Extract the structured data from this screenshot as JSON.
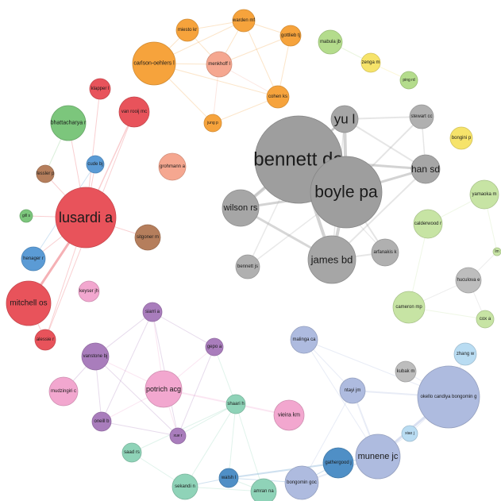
{
  "nodes": [
    {
      "id": "bennett",
      "label": "bennett da",
      "color": "#9e9e9e"
    },
    {
      "id": "boyle",
      "label": "boyle pa",
      "color": "#9e9e9e"
    },
    {
      "id": "yu",
      "label": "yu l",
      "color": "#a6a6a6"
    },
    {
      "id": "hansd",
      "label": "han sd",
      "color": "#a6a6a6"
    },
    {
      "id": "wilson",
      "label": "wilson rs",
      "color": "#a6a6a6"
    },
    {
      "id": "james",
      "label": "james bd",
      "color": "#a6a6a6"
    },
    {
      "id": "stewart",
      "label": "stewart cc",
      "color": "#b0b0b0"
    },
    {
      "id": "bennettjs",
      "label": "bennett js",
      "color": "#b0b0b0"
    },
    {
      "id": "arfanakis",
      "label": "arfanakis k",
      "color": "#b0b0b0"
    },
    {
      "id": "huculova",
      "label": "huculova e",
      "color": "#bdbdbd"
    },
    {
      "id": "kubak",
      "label": "kubak m",
      "color": "#bdbdbd"
    },
    {
      "id": "lusardi",
      "label": "lusardi a",
      "color": "#e8535b"
    },
    {
      "id": "mitchell",
      "label": "mitchell os",
      "color": "#e8535b"
    },
    {
      "id": "vanrooij",
      "label": "van rooij mc",
      "color": "#e8535b"
    },
    {
      "id": "klapper",
      "label": "klapper l",
      "color": "#e8535b"
    },
    {
      "id": "alessie",
      "label": "alessie r",
      "color": "#e8535b"
    },
    {
      "id": "bhattacharya",
      "label": "bhattacharya r",
      "color": "#7cc67c"
    },
    {
      "id": "gill",
      "label": "gill s",
      "color": "#7cc67c"
    },
    {
      "id": "fessler",
      "label": "fessler p",
      "color": "#b57e5c"
    },
    {
      "id": "sitgoner",
      "label": "sitgoner m",
      "color": "#b57e5c"
    },
    {
      "id": "cude",
      "label": "cude bj",
      "color": "#5b9bd5"
    },
    {
      "id": "henager",
      "label": "henager r",
      "color": "#5b9bd5"
    },
    {
      "id": "carlson",
      "label": "carlson-oehlers l",
      "color": "#f6a33c"
    },
    {
      "id": "miesto",
      "label": "miesto kr",
      "color": "#f6a33c"
    },
    {
      "id": "warden",
      "label": "warden mf",
      "color": "#f6a33c"
    },
    {
      "id": "gottlieb",
      "label": "gottlieb tj",
      "color": "#f6a33c"
    },
    {
      "id": "menkhoff",
      "label": "menkhoff l",
      "color": "#f5a790"
    },
    {
      "id": "cohen",
      "label": "cohen ks",
      "color": "#f6a33c"
    },
    {
      "id": "jung",
      "label": "jung p",
      "color": "#f6a33c"
    },
    {
      "id": "grohmann",
      "label": "grohmann a",
      "color": "#f5a790"
    },
    {
      "id": "mabula",
      "label": "mabula jb",
      "color": "#b4dc8c"
    },
    {
      "id": "zenga",
      "label": "zenga m",
      "color": "#f6e36a"
    },
    {
      "id": "ping",
      "label": "ping rd",
      "color": "#b4dc8c"
    },
    {
      "id": "bongini",
      "label": "bongini p",
      "color": "#f6e36a"
    },
    {
      "id": "yamaoka",
      "label": "yamaoka m",
      "color": "#c7e4a4"
    },
    {
      "id": "calderwood",
      "label": "calderwood r",
      "color": "#c7e4a4"
    },
    {
      "id": "lm",
      "label": "lm",
      "color": "#c7e4a4"
    },
    {
      "id": "cameron",
      "label": "cameron mp",
      "color": "#c7e4a4"
    },
    {
      "id": "cox",
      "label": "cox a",
      "color": "#c7e4a4"
    },
    {
      "id": "keyser",
      "label": "keyser jh",
      "color": "#f2a7cf"
    },
    {
      "id": "mudzingiri",
      "label": "mudzingiri c",
      "color": "#f2a7cf"
    },
    {
      "id": "potrich",
      "label": "potrich acg",
      "color": "#f2a7cf"
    },
    {
      "id": "vieira",
      "label": "vieira km",
      "color": "#f2a7cf"
    },
    {
      "id": "siarri",
      "label": "siarri a",
      "color": "#a97dbc"
    },
    {
      "id": "vanstone",
      "label": "vanstone bj",
      "color": "#a97dbc"
    },
    {
      "id": "gepo",
      "label": "gepo a",
      "color": "#a97dbc"
    },
    {
      "id": "oneill",
      "label": "oneill b",
      "color": "#a97dbc"
    },
    {
      "id": "xue",
      "label": "xue r",
      "color": "#a97dbc"
    },
    {
      "id": "shaari",
      "label": "shaari h",
      "color": "#8fd3b8"
    },
    {
      "id": "saad",
      "label": "saad rs",
      "color": "#8fd3b8"
    },
    {
      "id": "sekandi",
      "label": "sekandi n",
      "color": "#8fd3b8"
    },
    {
      "id": "amran",
      "label": "amran na",
      "color": "#8fd3b8"
    },
    {
      "id": "walsh",
      "label": "walsh l",
      "color": "#4f8fc6"
    },
    {
      "id": "gathergood",
      "label": "gathergood j",
      "color": "#4f8fc6"
    },
    {
      "id": "bongomin",
      "label": "bongomin goc",
      "color": "#aebbdf"
    },
    {
      "id": "malinga",
      "label": "malinga ca",
      "color": "#aebbdf"
    },
    {
      "id": "ntayi",
      "label": "ntayi jm",
      "color": "#aebbdf"
    },
    {
      "id": "munene",
      "label": "munene jc",
      "color": "#aebbdf"
    },
    {
      "id": "okello",
      "label": "okello candiya bongomin g",
      "color": "#aebbdf"
    },
    {
      "id": "zhang",
      "label": "zhang w",
      "color": "#b9dcf2"
    },
    {
      "id": "xiao",
      "label": "xiao j",
      "color": "#b9dcf2"
    }
  ]
}
